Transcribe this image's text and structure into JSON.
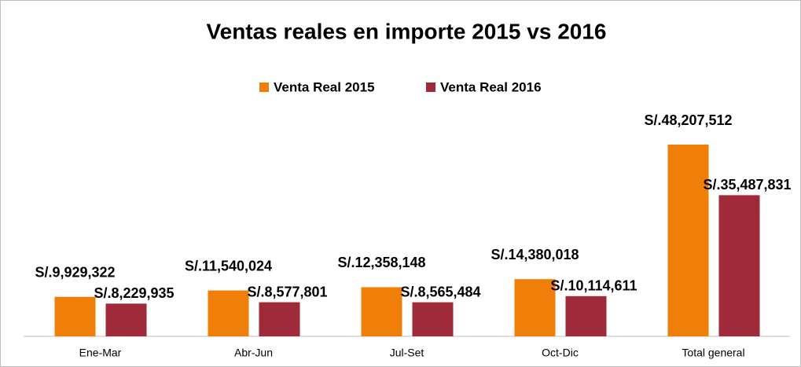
{
  "chart_data": {
    "type": "bar",
    "title": "Ventas reales en importe 2015 vs 2016",
    "categories": [
      "Ene-Mar",
      "Abr-Jun",
      "Jul-Set",
      "Oct-Dic",
      "Total general"
    ],
    "series": [
      {
        "name": "Venta Real 2015",
        "color": "#f07f09",
        "values": [
          9929322,
          11540024,
          12358148,
          14380018,
          48207512
        ],
        "value_labels": [
          "S/.9,929,322",
          "S/.11,540,024",
          "S/.12,358,148",
          "S/.14,380,018",
          "S/.48,207,512"
        ]
      },
      {
        "name": "Venta Real 2016",
        "color": "#9e2a3a",
        "values": [
          8229935,
          8577801,
          8565484,
          10114611,
          35487831
        ],
        "value_labels": [
          "S/.8,229,935",
          "S/.8,577,801",
          "S/.8,565,484",
          "S/.10,114,611",
          "S/.35,487,831"
        ]
      }
    ],
    "legend": "top"
  }
}
